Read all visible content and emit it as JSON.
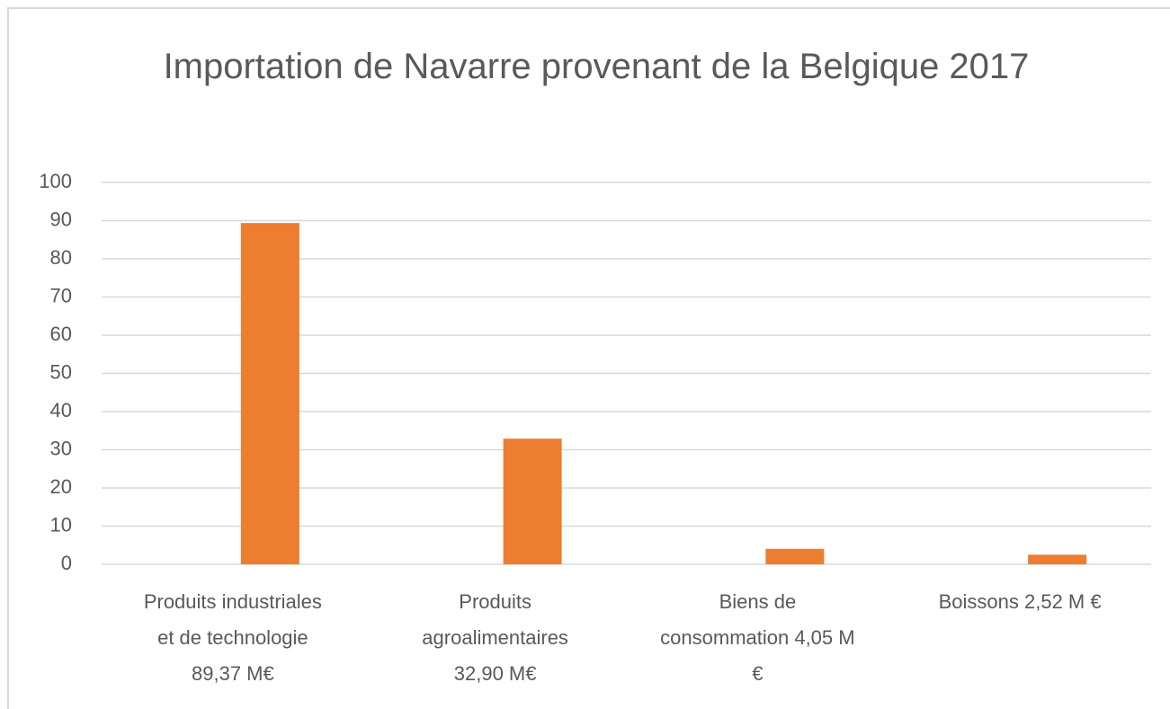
{
  "chart_data": {
    "type": "bar",
    "title": "Importation de Navarre provenant de la Belgique 2017",
    "categories": [
      "Produits industriales et de technologie 89,37 M€",
      "Produits agroalimentaires 32,90 M€",
      "Biens de consommation 4,05 M €",
      "Boissons 2,52 M €"
    ],
    "values": [
      89.37,
      32.9,
      4.05,
      2.52
    ],
    "color": "#ed7d31",
    "ylim": [
      0,
      100
    ],
    "yticks": [
      0,
      10,
      20,
      30,
      40,
      50,
      60,
      70,
      80,
      90,
      100
    ],
    "grid": true
  }
}
